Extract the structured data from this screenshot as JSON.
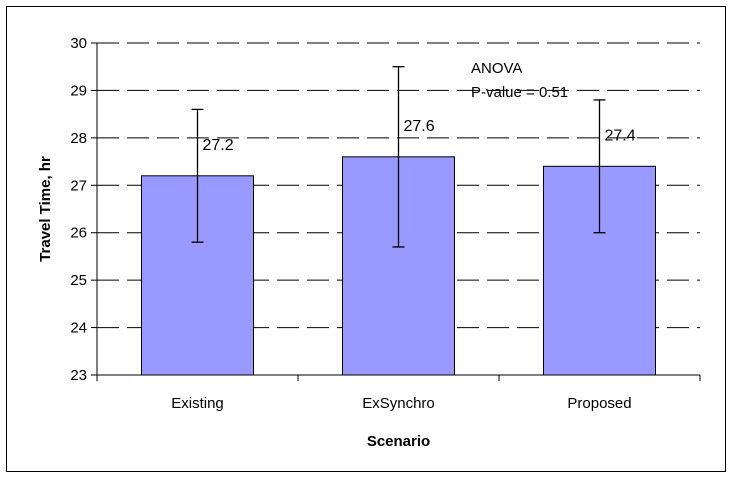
{
  "chart_data": {
    "type": "bar",
    "categories": [
      "Existing",
      "ExSynchro",
      "Proposed"
    ],
    "values": [
      27.2,
      27.6,
      27.4
    ],
    "error_low": [
      25.8,
      25.7,
      26.0
    ],
    "error_high": [
      28.6,
      29.5,
      28.8
    ],
    "data_labels": [
      "27.2",
      "27.6",
      "27.4"
    ],
    "xlabel": "Scenario",
    "ylabel": "Travel Time, hr",
    "ylim": [
      23,
      30
    ],
    "yticks": [
      "23",
      "24",
      "25",
      "26",
      "27",
      "28",
      "29",
      "30"
    ],
    "grid": true,
    "legend": "none",
    "annotations": [
      "ANOVA",
      "P-value = 0.51"
    ],
    "colors": {
      "bar_fill": "#9999ff",
      "bar_stroke": "#000000",
      "gridline": "#000000"
    }
  }
}
